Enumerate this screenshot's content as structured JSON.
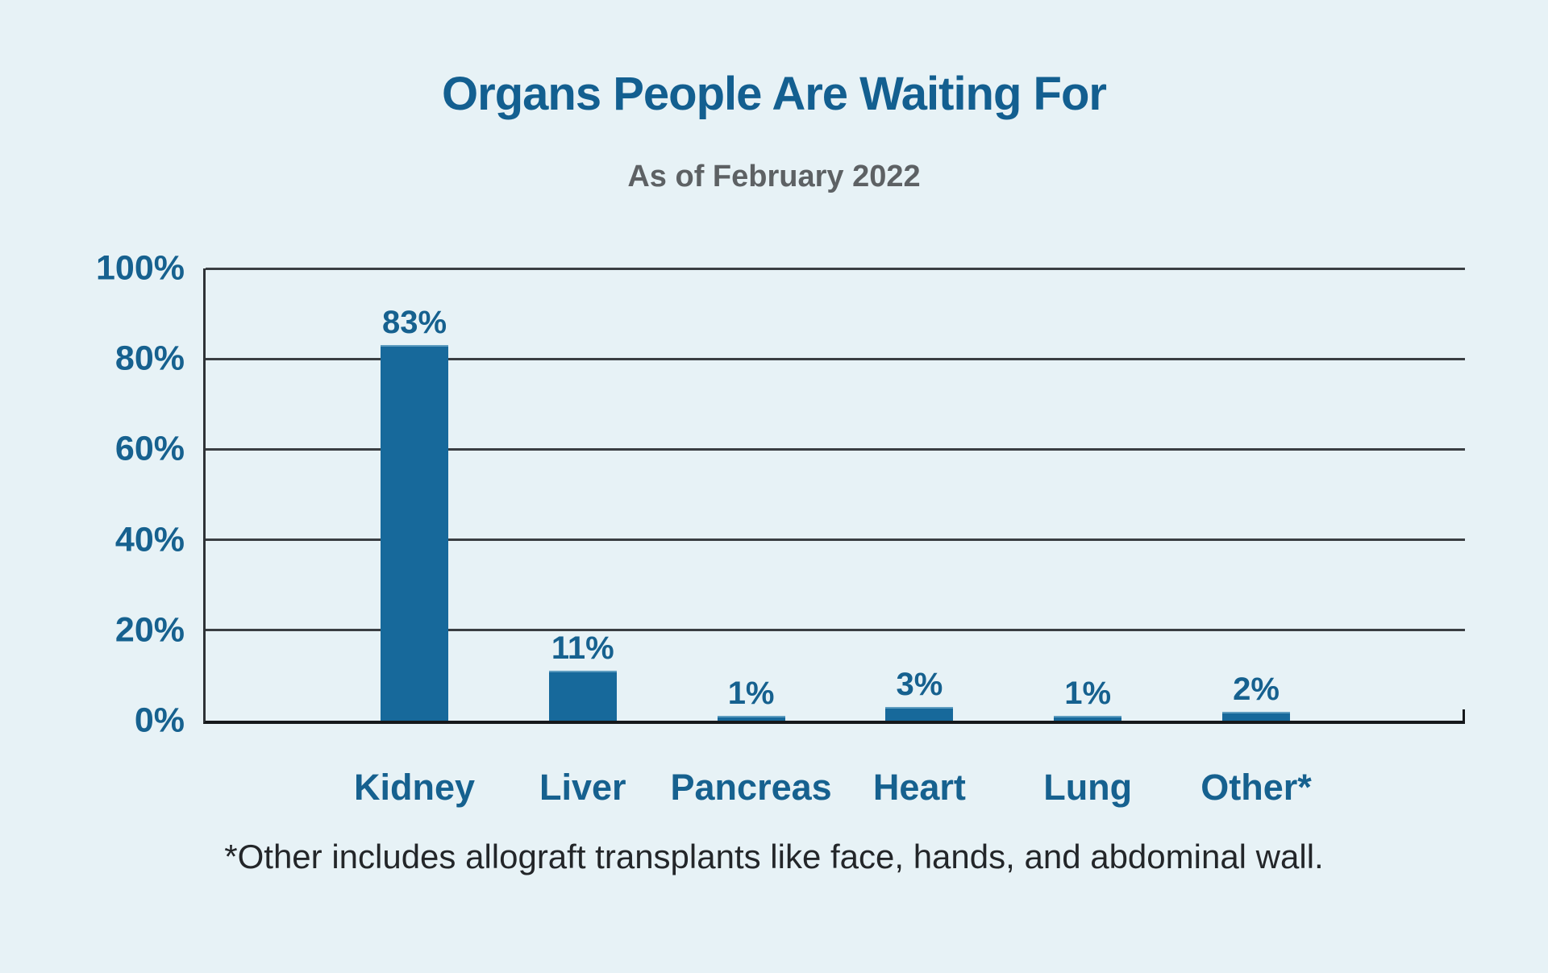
{
  "page": {
    "background_color": "#e7f2f6"
  },
  "header": {
    "title": "Organs People Are Waiting For",
    "subtitle": "As of February 2022"
  },
  "footnote": "*Other includes allograft transplants like face, hands, and abdominal wall.",
  "chart_data": {
    "type": "bar",
    "title": "Organs People Are Waiting For",
    "subtitle": "As of February 2022",
    "categories": [
      "Kidney",
      "Liver",
      "Pancreas",
      "Heart",
      "Lung",
      "Other*"
    ],
    "values": [
      83,
      11,
      1,
      3,
      1,
      2
    ],
    "value_labels": [
      "83%",
      "11%",
      "1%",
      "3%",
      "1%",
      "2%"
    ],
    "xlabel": "",
    "ylabel": "",
    "ylim": [
      0,
      100
    ],
    "yticks": [
      0,
      20,
      40,
      60,
      80,
      100
    ],
    "ytick_labels": [
      "0%",
      "20%",
      "40%",
      "60%",
      "80%",
      "100%"
    ],
    "grid": true,
    "legend": false,
    "annotation": "*Other includes allograft transplants like face, hands, and abdominal wall.",
    "colors": {
      "bar": "#17699b",
      "bar_top_highlight": "#5e9dc0",
      "title_text": "#135f90",
      "subtitle_text": "#5d6164",
      "axis_label_text": "#16618f",
      "gridline": "#3a3e42",
      "axis_line": "#15181b",
      "footnote_text": "#232629",
      "background": "#e7f2f6"
    }
  }
}
